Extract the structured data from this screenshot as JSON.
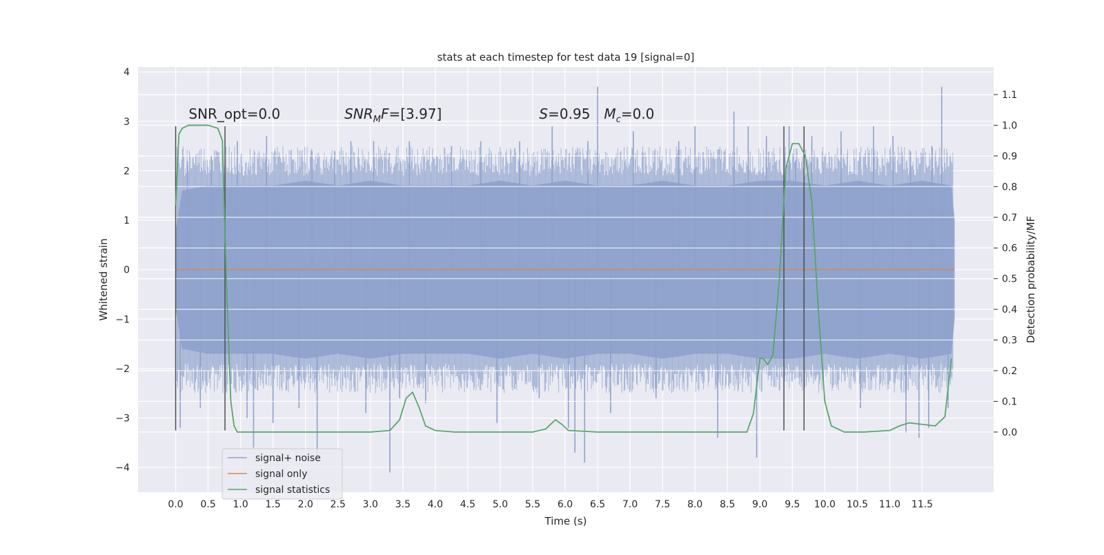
{
  "chart_data": {
    "type": "line",
    "title": "stats at each timestep for test data 19 [signal=0]",
    "xlabel": "Time (s)",
    "ylabel_left": "Whitened strain",
    "ylabel_right": "Detection probability/MF",
    "xlim": [
      -0.58,
      12.6
    ],
    "ylim_left": [
      -4.5,
      4.1
    ],
    "ylim_right": [
      -0.196,
      1.19
    ],
    "xticks": [
      0.0,
      0.5,
      1.0,
      1.5,
      2.0,
      2.5,
      3.0,
      3.5,
      4.0,
      4.5,
      5.0,
      5.5,
      6.0,
      6.5,
      7.0,
      7.5,
      8.0,
      8.5,
      9.0,
      9.5,
      10.0,
      10.5,
      11.0,
      11.5
    ],
    "xtick_labels": [
      "0.0",
      "0.5",
      "1.0",
      "1.5",
      "2.0",
      "2.5",
      "3.0",
      "3.5",
      "4.0",
      "4.5",
      "5.0",
      "5.5",
      "6.0",
      "6.5",
      "7.0",
      "7.5",
      "8.0",
      "8.5",
      "9.0",
      "9.5",
      "10.0",
      "10.5",
      "11.0",
      "11.5"
    ],
    "yticks_left": [
      -4,
      -3,
      -2,
      -1,
      0,
      1,
      2,
      3,
      4
    ],
    "ytick_labels_left": [
      "−4",
      "−3",
      "−2",
      "−1",
      "0",
      "1",
      "2",
      "3",
      "4"
    ],
    "yticks_right": [
      0.0,
      0.1,
      0.2,
      0.3,
      0.4,
      0.5,
      0.6,
      0.7,
      0.8,
      0.9,
      1.0,
      1.1
    ],
    "ytick_labels_right": [
      "0.0",
      "0.1",
      "0.2",
      "0.3",
      "0.4",
      "0.5",
      "0.6",
      "0.7",
      "0.8",
      "0.9",
      "1.0",
      "1.1"
    ],
    "grid": true,
    "legend_position": "lower-left",
    "colors": {
      "background": "#eaeaf2",
      "grid": "#ffffff",
      "noise": "#8ea1cc",
      "signal_only": "#dd8452",
      "statistics": "#55a868",
      "markers": "#4d4d4d"
    },
    "series": [
      {
        "name": "signal+ noise",
        "axis": "left",
        "envelope": {
          "t": [
            0.0,
            0.1,
            0.5,
            1.0,
            1.5,
            2.0,
            2.5,
            3.0,
            3.5,
            4.0,
            4.5,
            5.0,
            5.5,
            6.0,
            6.5,
            7.0,
            7.5,
            8.0,
            8.5,
            9.0,
            9.5,
            10.0,
            10.5,
            11.0,
            11.5,
            11.95,
            12.0
          ],
          "upper": [
            0.8,
            1.6,
            1.7,
            1.7,
            1.7,
            1.8,
            1.7,
            1.8,
            1.7,
            1.7,
            1.7,
            1.8,
            1.7,
            1.8,
            1.7,
            1.7,
            1.8,
            1.7,
            1.7,
            1.8,
            1.8,
            1.7,
            1.8,
            1.7,
            1.8,
            1.7,
            1.0
          ],
          "lower": [
            -0.8,
            -1.6,
            -1.7,
            -1.7,
            -1.7,
            -1.8,
            -1.7,
            -1.8,
            -1.7,
            -1.7,
            -1.7,
            -1.8,
            -1.7,
            -1.8,
            -1.7,
            -1.7,
            -1.8,
            -1.7,
            -1.7,
            -1.8,
            -1.8,
            -1.7,
            -1.8,
            -1.7,
            -1.8,
            -1.7,
            -1.0
          ]
        },
        "spikes": [
          {
            "x": 0.07,
            "y": -3.2
          },
          {
            "x": 0.18,
            "y": 2.2
          },
          {
            "x": 0.38,
            "y": -2.8
          },
          {
            "x": 0.55,
            "y": 2.3
          },
          {
            "x": 0.95,
            "y": 2.6
          },
          {
            "x": 1.1,
            "y": -3.0
          },
          {
            "x": 1.2,
            "y": -3.6
          },
          {
            "x": 1.4,
            "y": 2.7
          },
          {
            "x": 1.5,
            "y": -3.1
          },
          {
            "x": 1.9,
            "y": -2.8
          },
          {
            "x": 2.1,
            "y": 2.4
          },
          {
            "x": 2.18,
            "y": -3.8
          },
          {
            "x": 2.45,
            "y": 2.4
          },
          {
            "x": 2.7,
            "y": 2.6
          },
          {
            "x": 2.93,
            "y": -2.9
          },
          {
            "x": 3.05,
            "y": 2.6
          },
          {
            "x": 3.3,
            "y": -4.1
          },
          {
            "x": 3.45,
            "y": -2.6
          },
          {
            "x": 3.6,
            "y": 2.6
          },
          {
            "x": 3.85,
            "y": -2.7
          },
          {
            "x": 4.25,
            "y": 2.5
          },
          {
            "x": 4.7,
            "y": 2.6
          },
          {
            "x": 4.95,
            "y": -3.1
          },
          {
            "x": 5.3,
            "y": 2.6
          },
          {
            "x": 5.6,
            "y": -2.6
          },
          {
            "x": 5.8,
            "y": 2.9
          },
          {
            "x": 6.05,
            "y": -3.2
          },
          {
            "x": 6.15,
            "y": -3.7
          },
          {
            "x": 6.3,
            "y": -3.9
          },
          {
            "x": 6.35,
            "y": 2.6
          },
          {
            "x": 6.5,
            "y": 3.7
          },
          {
            "x": 6.7,
            "y": -2.9
          },
          {
            "x": 7.05,
            "y": 2.8
          },
          {
            "x": 7.4,
            "y": -2.6
          },
          {
            "x": 7.75,
            "y": 2.6
          },
          {
            "x": 8.0,
            "y": 2.9
          },
          {
            "x": 8.35,
            "y": -3.4
          },
          {
            "x": 8.6,
            "y": 3.2
          },
          {
            "x": 8.82,
            "y": 2.9
          },
          {
            "x": 8.95,
            "y": -3.8
          },
          {
            "x": 9.1,
            "y": 2.7
          },
          {
            "x": 9.45,
            "y": 2.9
          },
          {
            "x": 9.55,
            "y": 2.2
          },
          {
            "x": 9.8,
            "y": 2.7
          },
          {
            "x": 10.25,
            "y": 2.8
          },
          {
            "x": 10.55,
            "y": -2.8
          },
          {
            "x": 10.75,
            "y": 2.9
          },
          {
            "x": 11.05,
            "y": 2.7
          },
          {
            "x": 11.25,
            "y": -3.3
          },
          {
            "x": 11.32,
            "y": 2.4
          },
          {
            "x": 11.45,
            "y": -3.4
          },
          {
            "x": 11.6,
            "y": -3.2
          },
          {
            "x": 11.65,
            "y": 2.5
          },
          {
            "x": 11.8,
            "y": 3.7
          },
          {
            "x": 11.9,
            "y": -2.8
          }
        ]
      },
      {
        "name": "signal only",
        "axis": "left",
        "x": [
          0.0,
          12.0
        ],
        "y": [
          0.0,
          0.0
        ]
      },
      {
        "name": "signal statistics",
        "axis": "right",
        "x": [
          0.0,
          0.05,
          0.1,
          0.2,
          0.3,
          0.5,
          0.65,
          0.72,
          0.78,
          0.85,
          0.9,
          0.95,
          1.05,
          1.5,
          2.0,
          2.5,
          3.0,
          3.3,
          3.45,
          3.55,
          3.65,
          3.75,
          3.85,
          4.0,
          4.3,
          5.0,
          5.5,
          5.7,
          5.85,
          5.95,
          6.05,
          6.5,
          7.5,
          7.85,
          8.0,
          8.5,
          8.8,
          8.9,
          9.0,
          9.05,
          9.12,
          9.2,
          9.3,
          9.4,
          9.5,
          9.6,
          9.7,
          9.8,
          9.9,
          10.0,
          10.1,
          10.3,
          10.6,
          11.0,
          11.15,
          11.3,
          11.5,
          11.7,
          11.85,
          11.95
        ],
        "y": [
          0.74,
          0.97,
          0.99,
          1.0,
          1.0,
          1.0,
          0.99,
          0.95,
          0.5,
          0.1,
          0.02,
          0.0,
          0.0,
          0.0,
          0.0,
          0.0,
          0.0,
          0.005,
          0.04,
          0.11,
          0.13,
          0.08,
          0.02,
          0.005,
          0.0,
          0.0,
          0.0,
          0.01,
          0.04,
          0.025,
          0.005,
          0.0,
          0.0,
          0.0,
          0.0,
          0.0,
          0.0,
          0.06,
          0.24,
          0.24,
          0.22,
          0.25,
          0.5,
          0.86,
          0.94,
          0.94,
          0.9,
          0.75,
          0.4,
          0.1,
          0.02,
          0.0,
          0.0,
          0.005,
          0.02,
          0.03,
          0.025,
          0.02,
          0.05,
          0.24
        ]
      }
    ],
    "event_markers": [
      {
        "x": 0.0,
        "y_range": [
          -3.25,
          2.9
        ]
      },
      {
        "x": 0.76,
        "y_range": [
          -3.25,
          2.9
        ]
      },
      {
        "x": 9.37,
        "y_range": [
          -3.25,
          2.9
        ]
      },
      {
        "x": 9.68,
        "y_range": [
          -3.25,
          2.9
        ]
      }
    ],
    "annotations": [
      {
        "id": "snr-opt",
        "text": "SNR_opt=0.0",
        "x": 0.2,
        "y": 3.05
      },
      {
        "id": "snr-mf",
        "prefix": "SNR",
        "sub": "M",
        "suffix": "F=[3.97]",
        "x": 2.6,
        "y": 3.05
      },
      {
        "id": "s-mc",
        "s_letter": "S",
        "s_value": "=0.95",
        "m_letter": "M",
        "m_sub": "c",
        "m_value": "=0.0",
        "x": 5.6,
        "y": 3.05
      }
    ]
  }
}
